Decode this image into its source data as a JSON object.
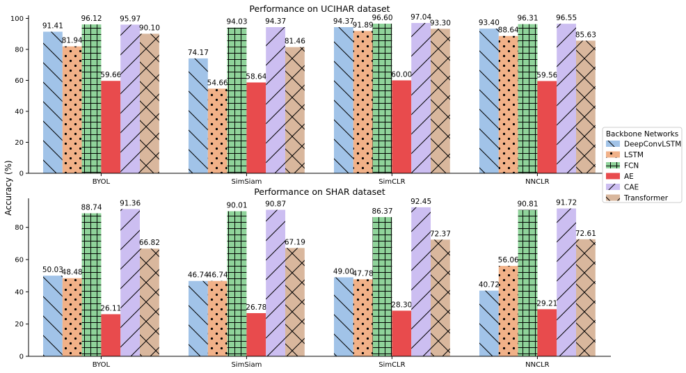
{
  "chart_data": [
    {
      "type": "bar",
      "title": "Performance on UCIHAR dataset",
      "xlabel": "",
      "ylabel": "Accuracy (%)",
      "ylim": [
        0,
        102
      ],
      "yticks": [
        0,
        20,
        40,
        60,
        80,
        100
      ],
      "categories": [
        "BYOL",
        "SimSiam",
        "SimCLR",
        "NNCLR"
      ],
      "series": [
        {
          "name": "DeepConvLSTM",
          "values": [
            91.41,
            74.17,
            94.37,
            93.4
          ],
          "labels": [
            "91.41",
            "74.17",
            "94.37",
            "93.40"
          ]
        },
        {
          "name": "LSTM",
          "values": [
            81.94,
            54.66,
            91.89,
            88.64
          ],
          "labels": [
            "81.94",
            "54.66",
            "91.89",
            "88.64"
          ]
        },
        {
          "name": "FCN",
          "values": [
            96.12,
            94.03,
            96.6,
            96.31
          ],
          "labels": [
            "96.12",
            "94.03",
            "96.60",
            "96.31"
          ]
        },
        {
          "name": "AE",
          "values": [
            59.66,
            58.64,
            60.0,
            59.56
          ],
          "labels": [
            "59.66",
            "58.64",
            "60.00",
            "59.56"
          ]
        },
        {
          "name": "CAE",
          "values": [
            95.97,
            94.37,
            97.04,
            96.55
          ],
          "labels": [
            "95.97",
            "94.37",
            "97.04",
            "96.55"
          ]
        },
        {
          "name": "Transformer",
          "values": [
            90.1,
            81.46,
            93.3,
            85.63
          ],
          "labels": [
            "90.10",
            "81.46",
            "93.30",
            "85.63"
          ]
        }
      ]
    },
    {
      "type": "bar",
      "title": "Performance on SHAR dataset",
      "xlabel": "",
      "ylabel": "Accuracy (%)",
      "ylim": [
        0,
        98
      ],
      "yticks": [
        0,
        20,
        40,
        60,
        80
      ],
      "categories": [
        "BYOL",
        "SimSiam",
        "SimCLR",
        "NNCLR"
      ],
      "series": [
        {
          "name": "DeepConvLSTM",
          "values": [
            50.03,
            46.74,
            49.0,
            40.72
          ],
          "labels": [
            "50.03",
            "46.74",
            "49.00",
            "40.72"
          ]
        },
        {
          "name": "LSTM",
          "values": [
            48.48,
            46.74,
            47.78,
            56.06
          ],
          "labels": [
            "48.48",
            "46.74",
            "47.78",
            "56.06"
          ]
        },
        {
          "name": "FCN",
          "values": [
            88.74,
            90.01,
            86.37,
            90.81
          ],
          "labels": [
            "88.74",
            "90.01",
            "86.37",
            "90.81"
          ]
        },
        {
          "name": "AE",
          "values": [
            26.11,
            26.78,
            28.3,
            29.21
          ],
          "labels": [
            "26.11",
            "26.78",
            "28.30",
            "29.21"
          ]
        },
        {
          "name": "CAE",
          "values": [
            91.36,
            90.87,
            92.45,
            91.72
          ],
          "labels": [
            "91.36",
            "90.87",
            "92.45",
            "91.72"
          ]
        },
        {
          "name": "Transformer",
          "values": [
            66.82,
            67.19,
            72.37,
            72.61
          ],
          "labels": [
            "66.82",
            "67.19",
            "72.37",
            "72.61"
          ]
        }
      ]
    }
  ],
  "legend": {
    "title": "Backbone Networks",
    "placement": "right-center",
    "entries": [
      "DeepConvLSTM",
      "LSTM",
      "FCN",
      "AE",
      "CAE",
      "Transformer"
    ]
  },
  "shared_ylabel": "Accuracy (%)",
  "series_style": {
    "DeepConvLSTM": {
      "color": "#a1c3e8",
      "hatch": "backslash"
    },
    "LSTM": {
      "color": "#f1b188",
      "hatch": "dots"
    },
    "FCN": {
      "color": "#8fd39a",
      "hatch": "grid"
    },
    "AE": {
      "color": "#e84b4d",
      "hatch": "none"
    },
    "CAE": {
      "color": "#ccbef1",
      "hatch": "slash"
    },
    "Transformer": {
      "color": "#d9b79d",
      "hatch": "cross"
    }
  }
}
